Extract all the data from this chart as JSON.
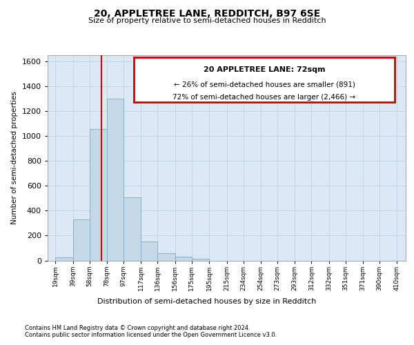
{
  "title": "20, APPLETREE LANE, REDDITCH, B97 6SE",
  "subtitle": "Size of property relative to semi-detached houses in Redditch",
  "xlabel": "Distribution of semi-detached houses by size in Redditch",
  "ylabel": "Number of semi-detached properties",
  "footnote1": "Contains HM Land Registry data © Crown copyright and database right 2024.",
  "footnote2": "Contains public sector information licensed under the Open Government Licence v3.0.",
  "annotation_title": "20 APPLETREE LANE: 72sqm",
  "annotation_line1": "← 26% of semi-detached houses are smaller (891)",
  "annotation_line2": "72% of semi-detached houses are larger (2,466) →",
  "property_size": 72,
  "bar_left_edges": [
    19,
    39,
    58,
    78,
    97,
    117,
    136,
    156,
    175,
    195,
    215,
    234,
    254,
    273,
    293,
    312,
    332,
    351,
    371,
    390
  ],
  "bar_widths": [
    20,
    19,
    20,
    19,
    20,
    19,
    20,
    19,
    20,
    20,
    19,
    20,
    19,
    20,
    19,
    20,
    19,
    20,
    19,
    20
  ],
  "bar_heights": [
    25,
    330,
    1055,
    1300,
    510,
    155,
    60,
    30,
    15,
    0,
    0,
    0,
    0,
    0,
    0,
    0,
    0,
    0,
    0,
    0
  ],
  "tick_labels": [
    "19sqm",
    "39sqm",
    "58sqm",
    "78sqm",
    "97sqm",
    "117sqm",
    "136sqm",
    "156sqm",
    "175sqm",
    "195sqm",
    "215sqm",
    "234sqm",
    "254sqm",
    "273sqm",
    "293sqm",
    "312sqm",
    "332sqm",
    "351sqm",
    "371sqm",
    "390sqm",
    "410sqm"
  ],
  "tick_positions": [
    19,
    39,
    58,
    78,
    97,
    117,
    136,
    156,
    175,
    195,
    215,
    234,
    254,
    273,
    293,
    312,
    332,
    351,
    371,
    390,
    410
  ],
  "bar_color": "#c5d8e8",
  "bar_edgecolor": "#7aaac8",
  "redline_color": "#cc0000",
  "redline_x": 72,
  "ylim": [
    0,
    1650
  ],
  "xlim": [
    10,
    420
  ],
  "bg_color": "#dce9f5",
  "annotation_box_edgecolor": "#cc0000",
  "annotation_box_facecolor": "#ffffff",
  "grid_color": "#b8cfe0",
  "yticks": [
    0,
    200,
    400,
    600,
    800,
    1000,
    1200,
    1400,
    1600
  ],
  "ytick_labels": [
    "0",
    "200",
    "400",
    "600",
    "800",
    "1000",
    "1200",
    "1400",
    "1600"
  ]
}
